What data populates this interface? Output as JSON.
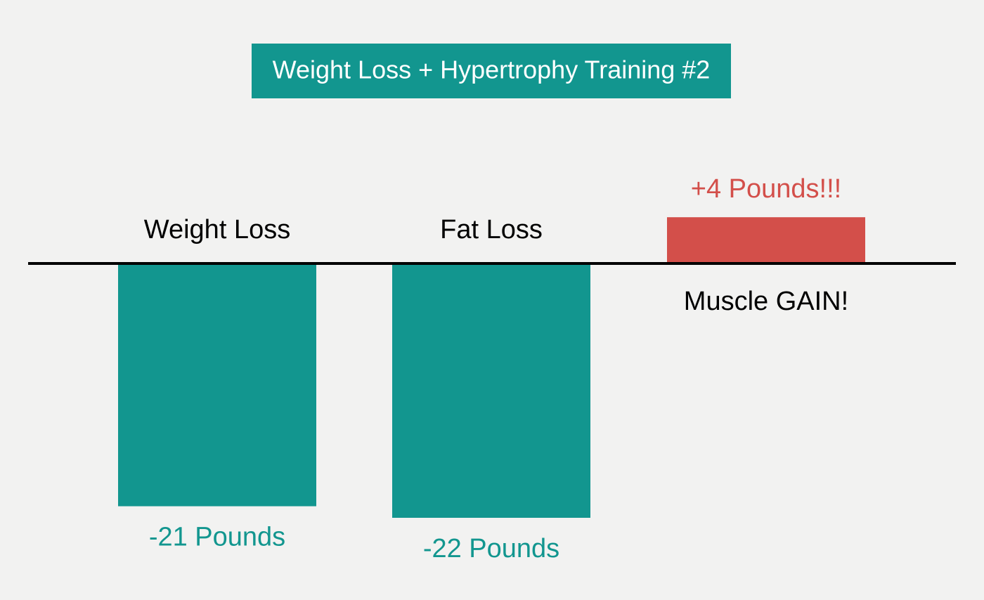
{
  "chart_data": {
    "type": "bar",
    "title": "Weight Loss + Hypertrophy Training #2",
    "categories": [
      "Weight Loss",
      "Fat Loss",
      "Muscle GAIN!"
    ],
    "values": [
      -21,
      -22,
      4
    ],
    "value_labels": [
      "-21 Pounds",
      "-22 Pounds",
      "+4 Pounds!!!"
    ],
    "colors": [
      "#12968f",
      "#12968f",
      "#d34f4a"
    ]
  }
}
